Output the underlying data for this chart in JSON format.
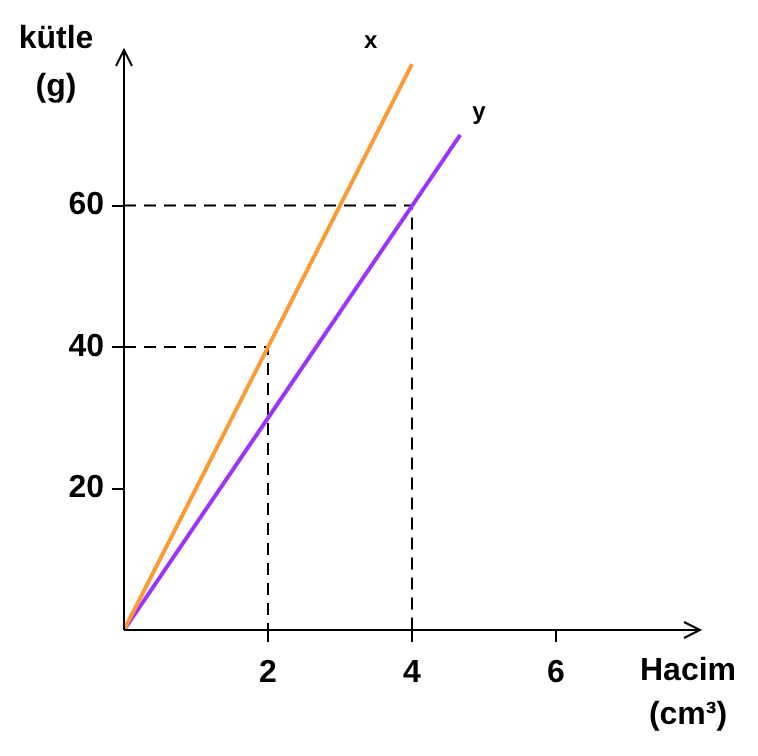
{
  "chart_data": {
    "type": "line",
    "xlabel": "Hacim (cm³)",
    "ylabel": "kütle (g)",
    "xlim": [
      0,
      8
    ],
    "ylim": [
      0,
      82
    ],
    "xticks": [
      2,
      4,
      6
    ],
    "yticks": [
      20,
      40,
      60
    ],
    "grid": false,
    "legend": false,
    "marker": "none",
    "series": [
      {
        "name": "x",
        "color": "#ff9933",
        "x": [
          0,
          4
        ],
        "values": [
          0,
          80
        ]
      },
      {
        "name": "y",
        "color": "#9933ff",
        "x": [
          0,
          4.67
        ],
        "values": [
          0,
          70
        ]
      },
      {
        "color": "#000000",
        "line_style": "dashed",
        "x": [
          0,
          2,
          2
        ],
        "values": [
          40,
          40,
          0
        ]
      },
      {
        "color": "#000000",
        "line_style": "dashed",
        "x": [
          0,
          4,
          4
        ],
        "values": [
          60,
          60,
          0
        ]
      }
    ]
  }
}
